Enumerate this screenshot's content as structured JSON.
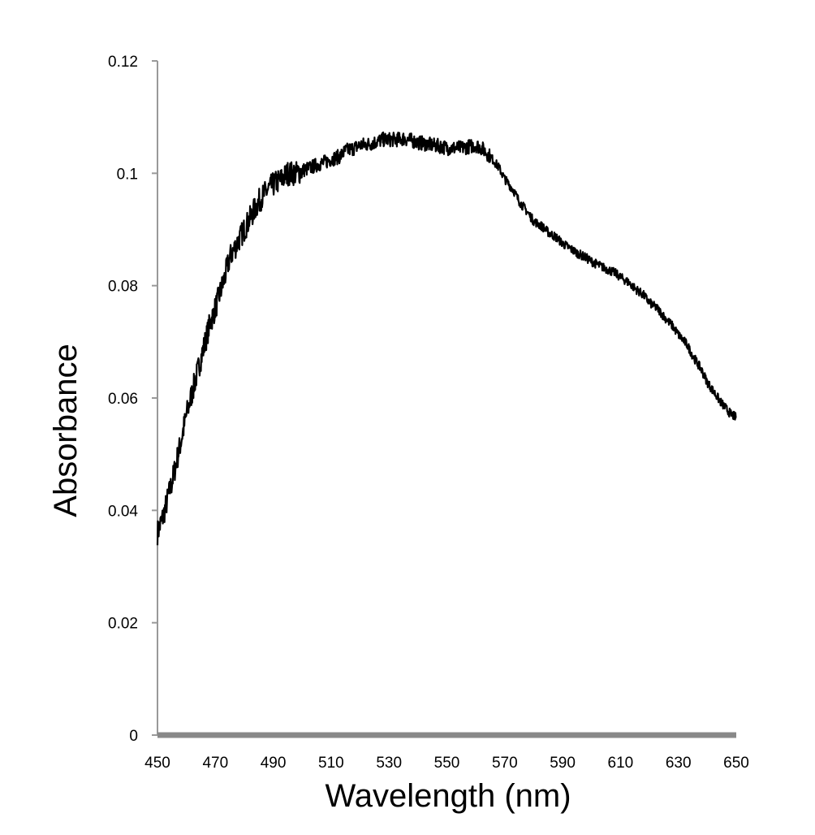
{
  "chart_data": {
    "type": "line",
    "title": "",
    "xlabel": "Wavelength (nm)",
    "ylabel": "Absorbance",
    "xlim": [
      450,
      650
    ],
    "ylim": [
      0,
      0.12
    ],
    "x_ticks": [
      450,
      470,
      490,
      510,
      530,
      550,
      570,
      590,
      610,
      630,
      650
    ],
    "y_ticks": [
      0,
      0.02,
      0.04,
      0.06,
      0.08,
      0.1,
      0.12
    ],
    "y_tick_labels": [
      "0",
      "0.02",
      "0.04",
      "0.06",
      "0.08",
      "0.1",
      "0.12"
    ],
    "grid": false,
    "legend": "none",
    "colors": {
      "line": "#000000",
      "y_axis": "#999999",
      "x_axis": "#888888"
    },
    "series": [
      {
        "x": [
          450,
          452,
          455,
          458,
          460,
          463,
          465,
          468,
          470,
          473,
          475,
          478,
          480,
          483,
          485,
          488,
          490,
          493,
          495,
          498,
          500,
          503,
          505,
          508,
          510,
          513,
          515,
          518,
          520,
          523,
          525,
          528,
          530,
          533,
          535,
          538,
          540,
          543,
          545,
          548,
          550,
          553,
          555,
          558,
          560,
          562,
          565,
          568,
          570,
          573,
          575,
          578,
          580,
          583,
          585,
          588,
          590,
          593,
          595,
          598,
          600,
          603,
          605,
          608,
          610,
          613,
          615,
          618,
          620,
          623,
          625,
          628,
          630,
          633,
          635,
          638,
          640,
          643,
          645,
          648,
          650
        ],
        "y": [
          0.036,
          0.039,
          0.045,
          0.052,
          0.057,
          0.063,
          0.067,
          0.073,
          0.076,
          0.081,
          0.085,
          0.088,
          0.09,
          0.093,
          0.095,
          0.097,
          0.098,
          0.099,
          0.1,
          0.1,
          0.1005,
          0.101,
          0.1015,
          0.102,
          0.1025,
          0.103,
          0.104,
          0.1045,
          0.105,
          0.1052,
          0.1055,
          0.106,
          0.106,
          0.106,
          0.1062,
          0.1058,
          0.1055,
          0.1052,
          0.105,
          0.1048,
          0.1045,
          0.1045,
          0.1045,
          0.1048,
          0.105,
          0.1045,
          0.103,
          0.101,
          0.099,
          0.097,
          0.095,
          0.093,
          0.0915,
          0.0905,
          0.0895,
          0.0885,
          0.0875,
          0.0865,
          0.0858,
          0.085,
          0.0843,
          0.0835,
          0.083,
          0.0823,
          0.0815,
          0.0805,
          0.0795,
          0.0783,
          0.077,
          0.0758,
          0.0745,
          0.0728,
          0.0713,
          0.0695,
          0.0675,
          0.065,
          0.0628,
          0.0605,
          0.059,
          0.0572,
          0.0565
        ]
      }
    ]
  }
}
